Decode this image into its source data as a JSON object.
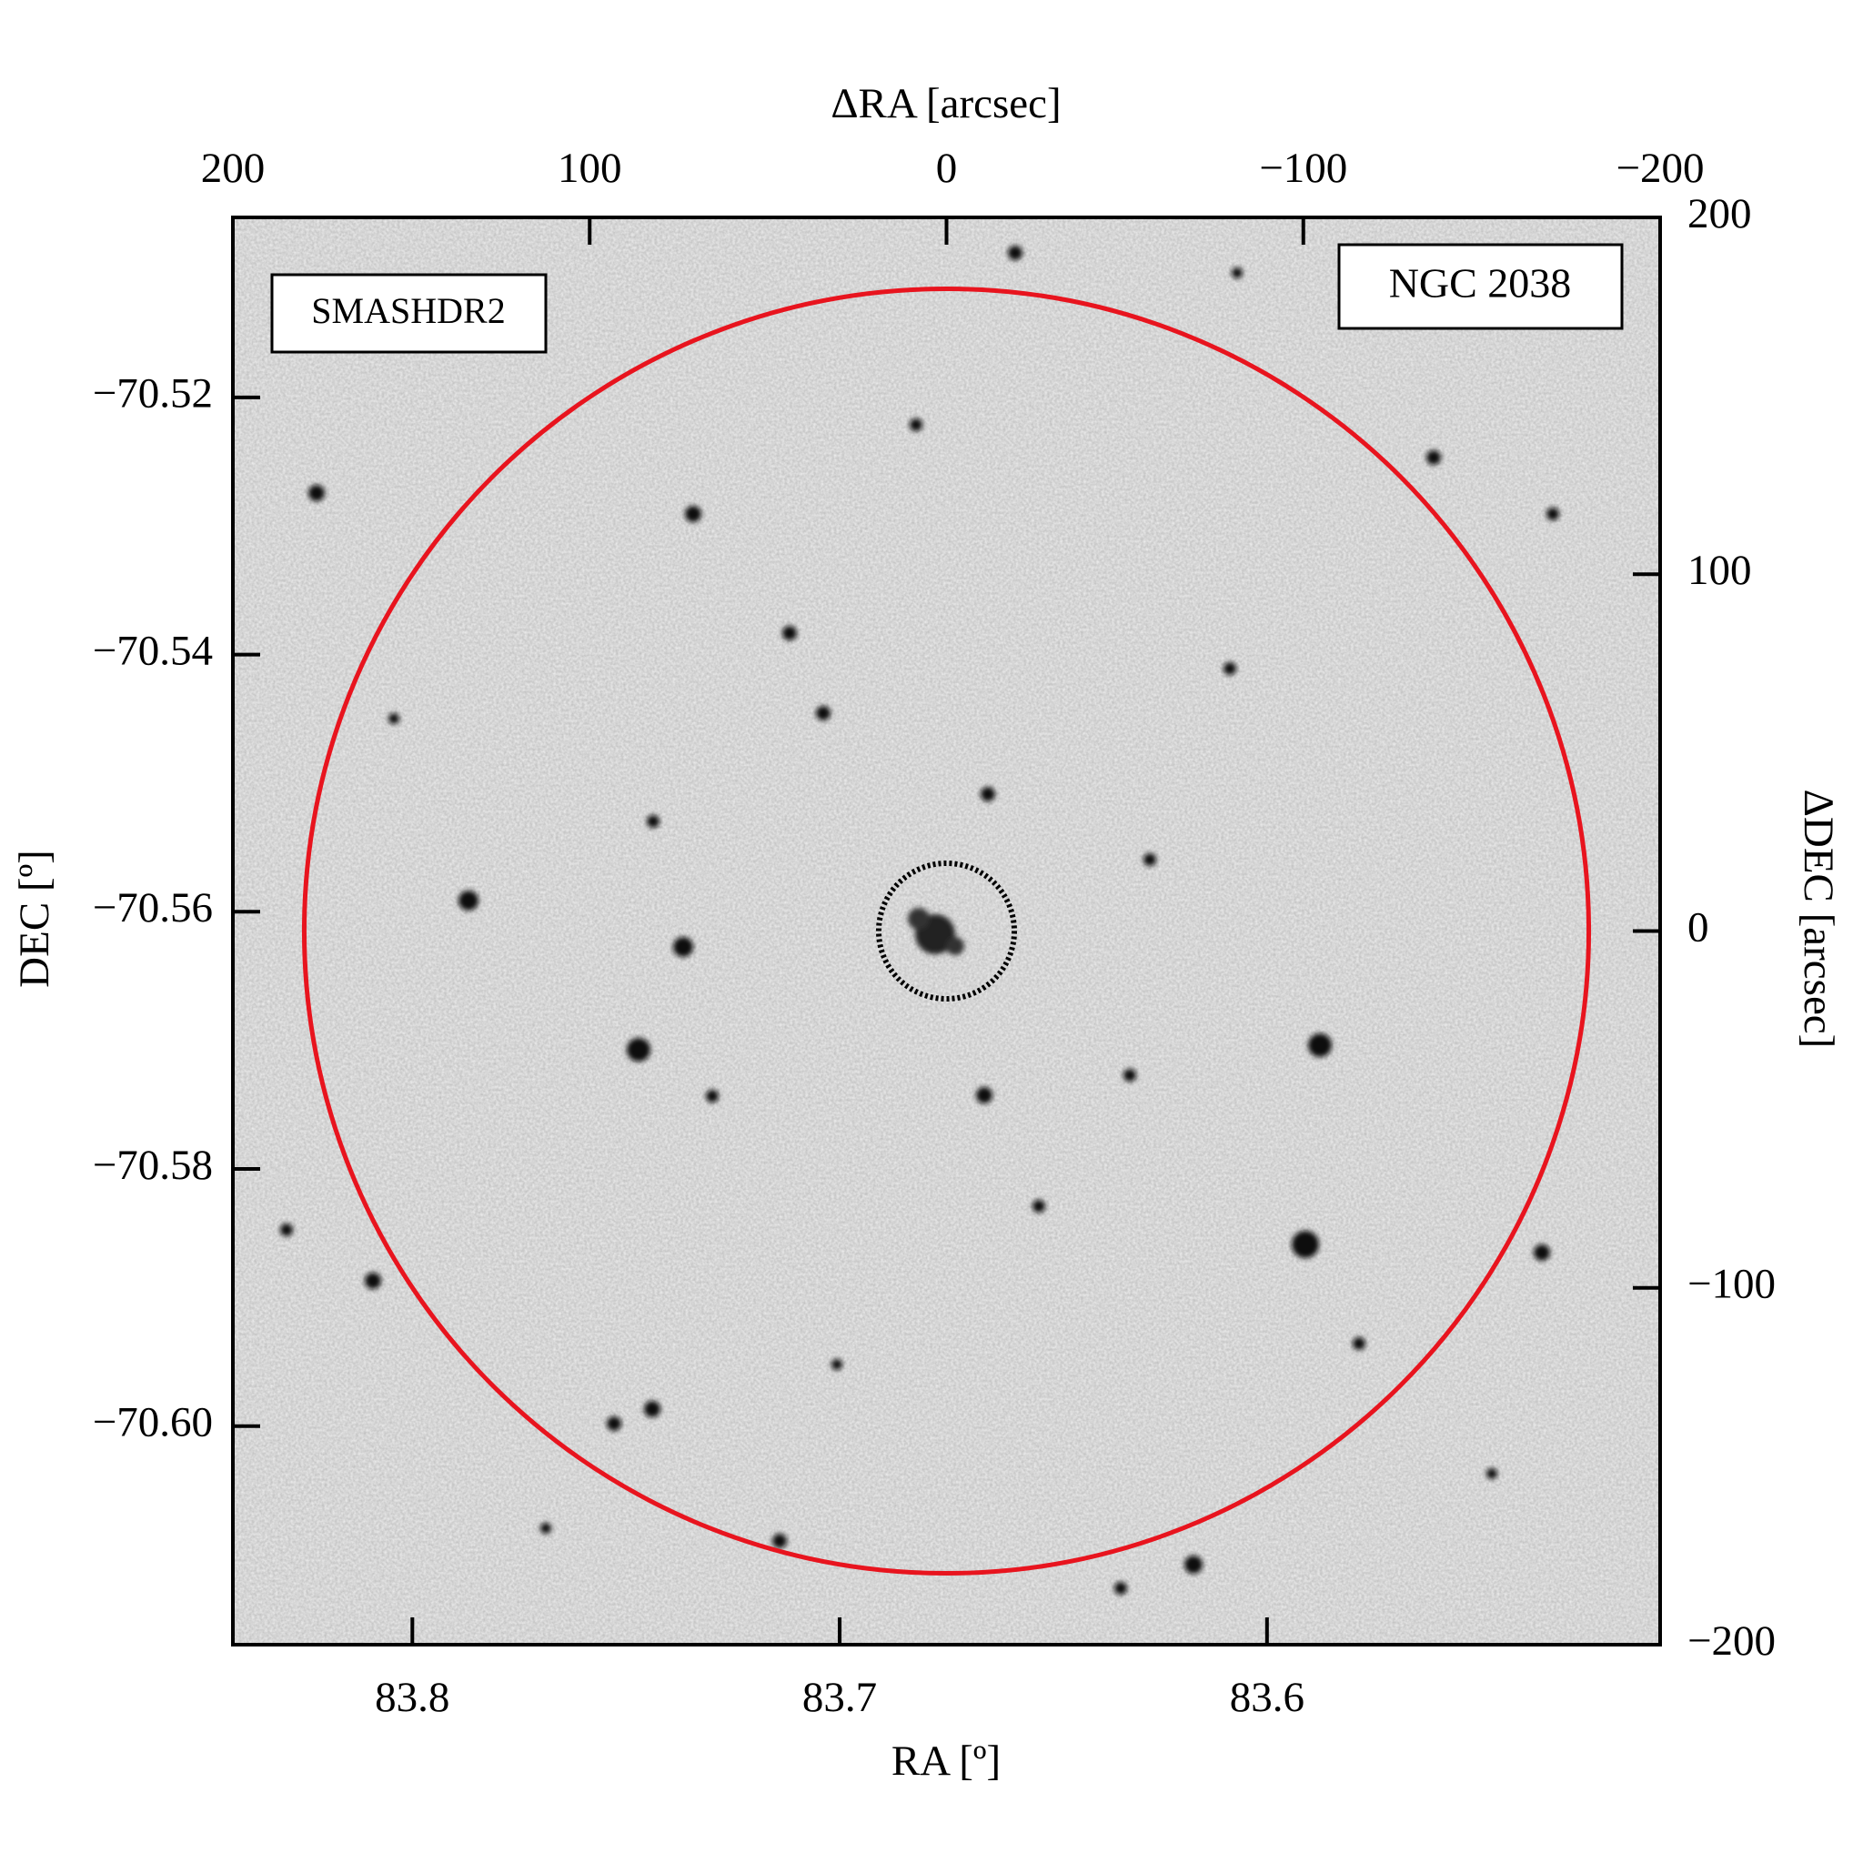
{
  "chart_data": {
    "type": "image",
    "x_label": "RA [º]",
    "y_label": "DEC [º]",
    "x2_label": "ΔRA [arcsec]",
    "y2_label": "ΔDEC [arcsec]",
    "xlim": [
      83.842,
      83.508
    ],
    "ylim": [
      -70.617,
      -70.506
    ],
    "x2lim": [
      200,
      -200
    ],
    "y2lim": [
      -200,
      200
    ],
    "xticks": [
      83.8,
      83.7,
      83.6
    ],
    "yticks": [
      {
        "value": -70.52,
        "label": "−70.52"
      },
      {
        "value": -70.54,
        "label": "−70.54"
      },
      {
        "value": -70.56,
        "label": "−70.56"
      },
      {
        "value": -70.58,
        "label": "−70.58"
      },
      {
        "value": -70.6,
        "label": "−70.60"
      }
    ],
    "x2ticks": [
      200,
      100,
      0,
      {
        "value": -100,
        "label": "−100"
      },
      {
        "value": -200,
        "label": "−200"
      }
    ],
    "y2ticks": [
      200,
      100,
      0,
      {
        "value": -100,
        "label": "−100"
      },
      {
        "value": -200,
        "label": "−200"
      }
    ],
    "annotations": [
      {
        "text": "SMASHDR2",
        "color": "#e8141e"
      },
      {
        "text": "NGC 2038",
        "color": "#000000"
      }
    ],
    "circles": [
      {
        "x": 0,
        "y": 0,
        "radius": 180,
        "color": "#e8141e",
        "style": "solid"
      },
      {
        "x": 0,
        "y": 0,
        "radius": 19,
        "color": "#000000",
        "style": "dotted"
      }
    ]
  }
}
